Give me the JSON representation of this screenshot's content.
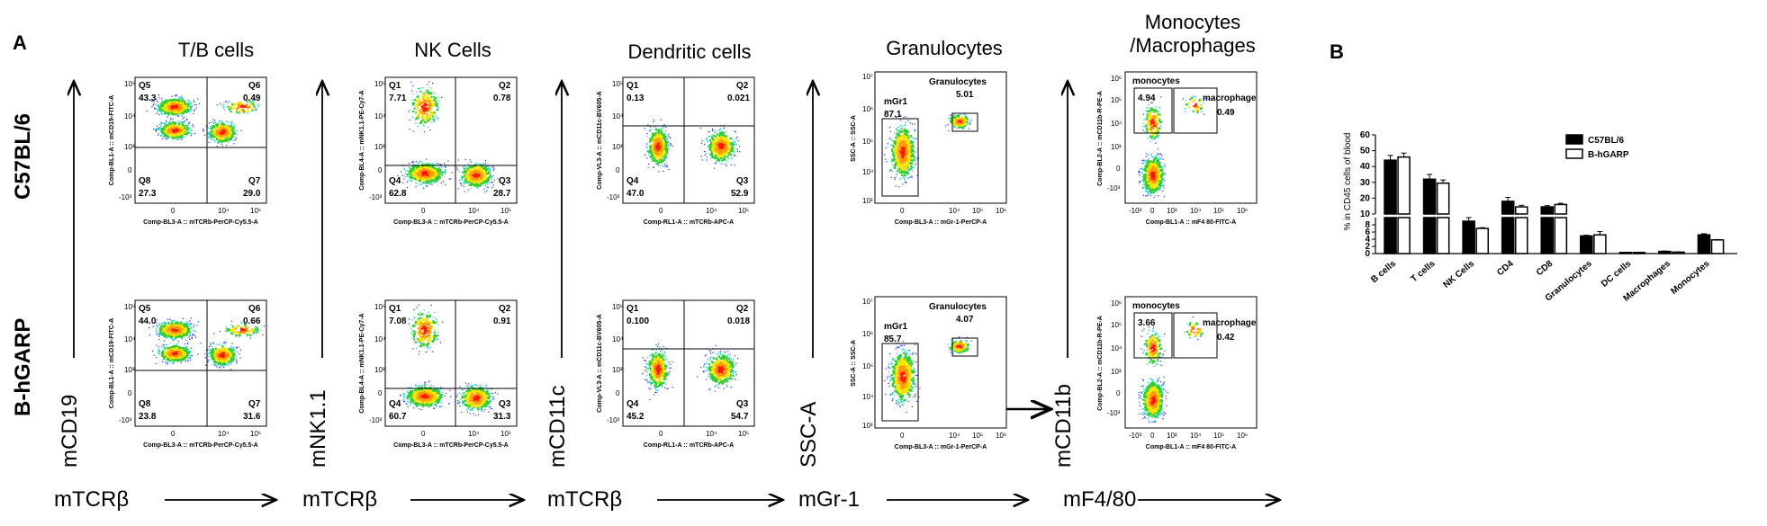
{
  "panel_a": "A",
  "panel_b": "B",
  "columns": [
    {
      "title": "T/B cells"
    },
    {
      "title": "NK Cells"
    },
    {
      "title": "Dendritic cells"
    },
    {
      "title": "Granulocytes"
    },
    {
      "title": "Monocytes\n/Macrophages"
    }
  ],
  "rows": [
    "C57BL/6",
    "B-hGARP"
  ],
  "y_markers": [
    "mCD19",
    "mNK1.1",
    "mCD11c",
    "SSC-A",
    "mCD11b"
  ],
  "x_markers": [
    "mTCRβ",
    "mTCRβ",
    "mTCRβ",
    "mGr-1",
    "mF4/80"
  ],
  "plots": {
    "tb": {
      "xaxis": "Comp-BL3-A :: mTCRb-PerCP-Cy5.5-A",
      "yaxis": "Comp-BL1-A :: mCD19-FITC-A",
      "row1": {
        "q5": "Q5",
        "q5v": "43.3",
        "q6": "Q6",
        "q6v": "0.49",
        "q8": "Q8",
        "q8v": "27.3",
        "q7": "Q7",
        "q7v": "29.0"
      },
      "row2": {
        "q5": "Q5",
        "q5v": "44.0",
        "q6": "Q6",
        "q6v": "0.66",
        "q8": "Q8",
        "q8v": "23.8",
        "q7": "Q7",
        "q7v": "31.6"
      }
    },
    "nk": {
      "xaxis": "Comp-BL3-A :: mTCRb-PerCP-Cy5.5-A",
      "yaxis": "Comp-BL4-A :: mNK1.1-PE-Cy7-A",
      "row1": {
        "q1": "Q1",
        "q1v": "7.71",
        "q2": "Q2",
        "q2v": "0.78",
        "q4": "Q4",
        "q4v": "62.8",
        "q3": "Q3",
        "q3v": "28.7"
      },
      "row2": {
        "q1": "Q1",
        "q1v": "7.08",
        "q2": "Q2",
        "q2v": "0.91",
        "q4": "Q4",
        "q4v": "60.7",
        "q3": "Q3",
        "q3v": "31.3"
      }
    },
    "dc": {
      "xaxis": "Comp-RL1-A :: mTCRb-APC-A",
      "yaxis": "Comp-VL3-A :: mCD11c-BV605-A",
      "row1": {
        "q1": "Q1",
        "q1v": "0.13",
        "q2": "Q2",
        "q2v": "0.021",
        "q4": "Q4",
        "q4v": "47.0",
        "q3": "Q3",
        "q3v": "52.9"
      },
      "row2": {
        "q1": "Q1",
        "q1v": "0.100",
        "q2": "Q2",
        "q2v": "0.018",
        "q4": "Q4",
        "q4v": "45.2",
        "q3": "Q3",
        "q3v": "54.7"
      }
    },
    "gran": {
      "xaxis": "Comp-BL3-A :: mGr-1-PerCP-A",
      "yaxis": "SSC-A :: SSC-A",
      "row1": {
        "gate": "mGr1",
        "gatev": "87.1",
        "gran": "Granulocytes",
        "granv": "5.01"
      },
      "row2": {
        "gate": "mGr1",
        "gatev": "85.7",
        "gran": "Granulocytes",
        "granv": "4.07"
      }
    },
    "mono": {
      "xaxis": "Comp-BL1-A :: mF4 80-FITC-A",
      "yaxis": "Comp-BL2-A :: mCD11b-R-PE-A",
      "row1": {
        "mono": "monocytes",
        "monov": "4.94",
        "mac": "macrophage",
        "macv": "0.49"
      },
      "row2": {
        "mono": "monocytes",
        "monov": "3.66",
        "mac": "macrophage",
        "macv": "0.42"
      }
    }
  },
  "ticks": {
    "lin_y": [
      "10^5",
      "10^4",
      "10^3",
      "0",
      "-10^3"
    ],
    "lin_x": [
      "0",
      "10^4",
      "10^5"
    ],
    "ssc_y": [
      "10^7",
      "10^6",
      "10^5",
      "10^4",
      "10^3"
    ],
    "gran_x": [
      "0",
      "10^4",
      "10^5",
      "10^6"
    ],
    "mono_y": [
      "10^6",
      "10^5",
      "10^4",
      "10^3",
      "0",
      "-10^3"
    ],
    "mono_x": [
      "-10^3",
      "0",
      "10^3",
      "10^4",
      "10^5",
      "10^6"
    ]
  },
  "chart_data": {
    "type": "bar",
    "title": "",
    "xlabel": "",
    "ylabel": "% in CD45 cells of blood",
    "categories": [
      "B cells",
      "T cells",
      "NK Cells",
      "CD4",
      "CD8",
      "Granulocytes",
      "DC cells",
      "Macrophages",
      "Monocytes"
    ],
    "series": [
      {
        "name": "C57BL/6",
        "color": "#000000",
        "values": [
          44,
          32,
          9,
          18,
          14.5,
          4.9,
          0.3,
          0.6,
          5.2
        ],
        "errors": [
          3,
          3,
          1,
          2.5,
          0.8,
          0.2,
          0.05,
          0.1,
          0.3
        ]
      },
      {
        "name": "B-hGARP",
        "color": "#ffffff",
        "values": [
          46,
          29.5,
          7,
          14.5,
          16,
          5.2,
          0.3,
          0.4,
          3.8
        ],
        "errors": [
          2.5,
          2,
          0.2,
          1,
          0.8,
          0.9,
          0.05,
          0.05,
          0.1
        ]
      }
    ],
    "ylim_upper": [
      10,
      60
    ],
    "ylim_lower": [
      0,
      10
    ],
    "yticks_upper": [
      10,
      20,
      30,
      40,
      50,
      60
    ],
    "yticks_lower": [
      0,
      2,
      4,
      6,
      8,
      10
    ],
    "legend": "top-right"
  }
}
